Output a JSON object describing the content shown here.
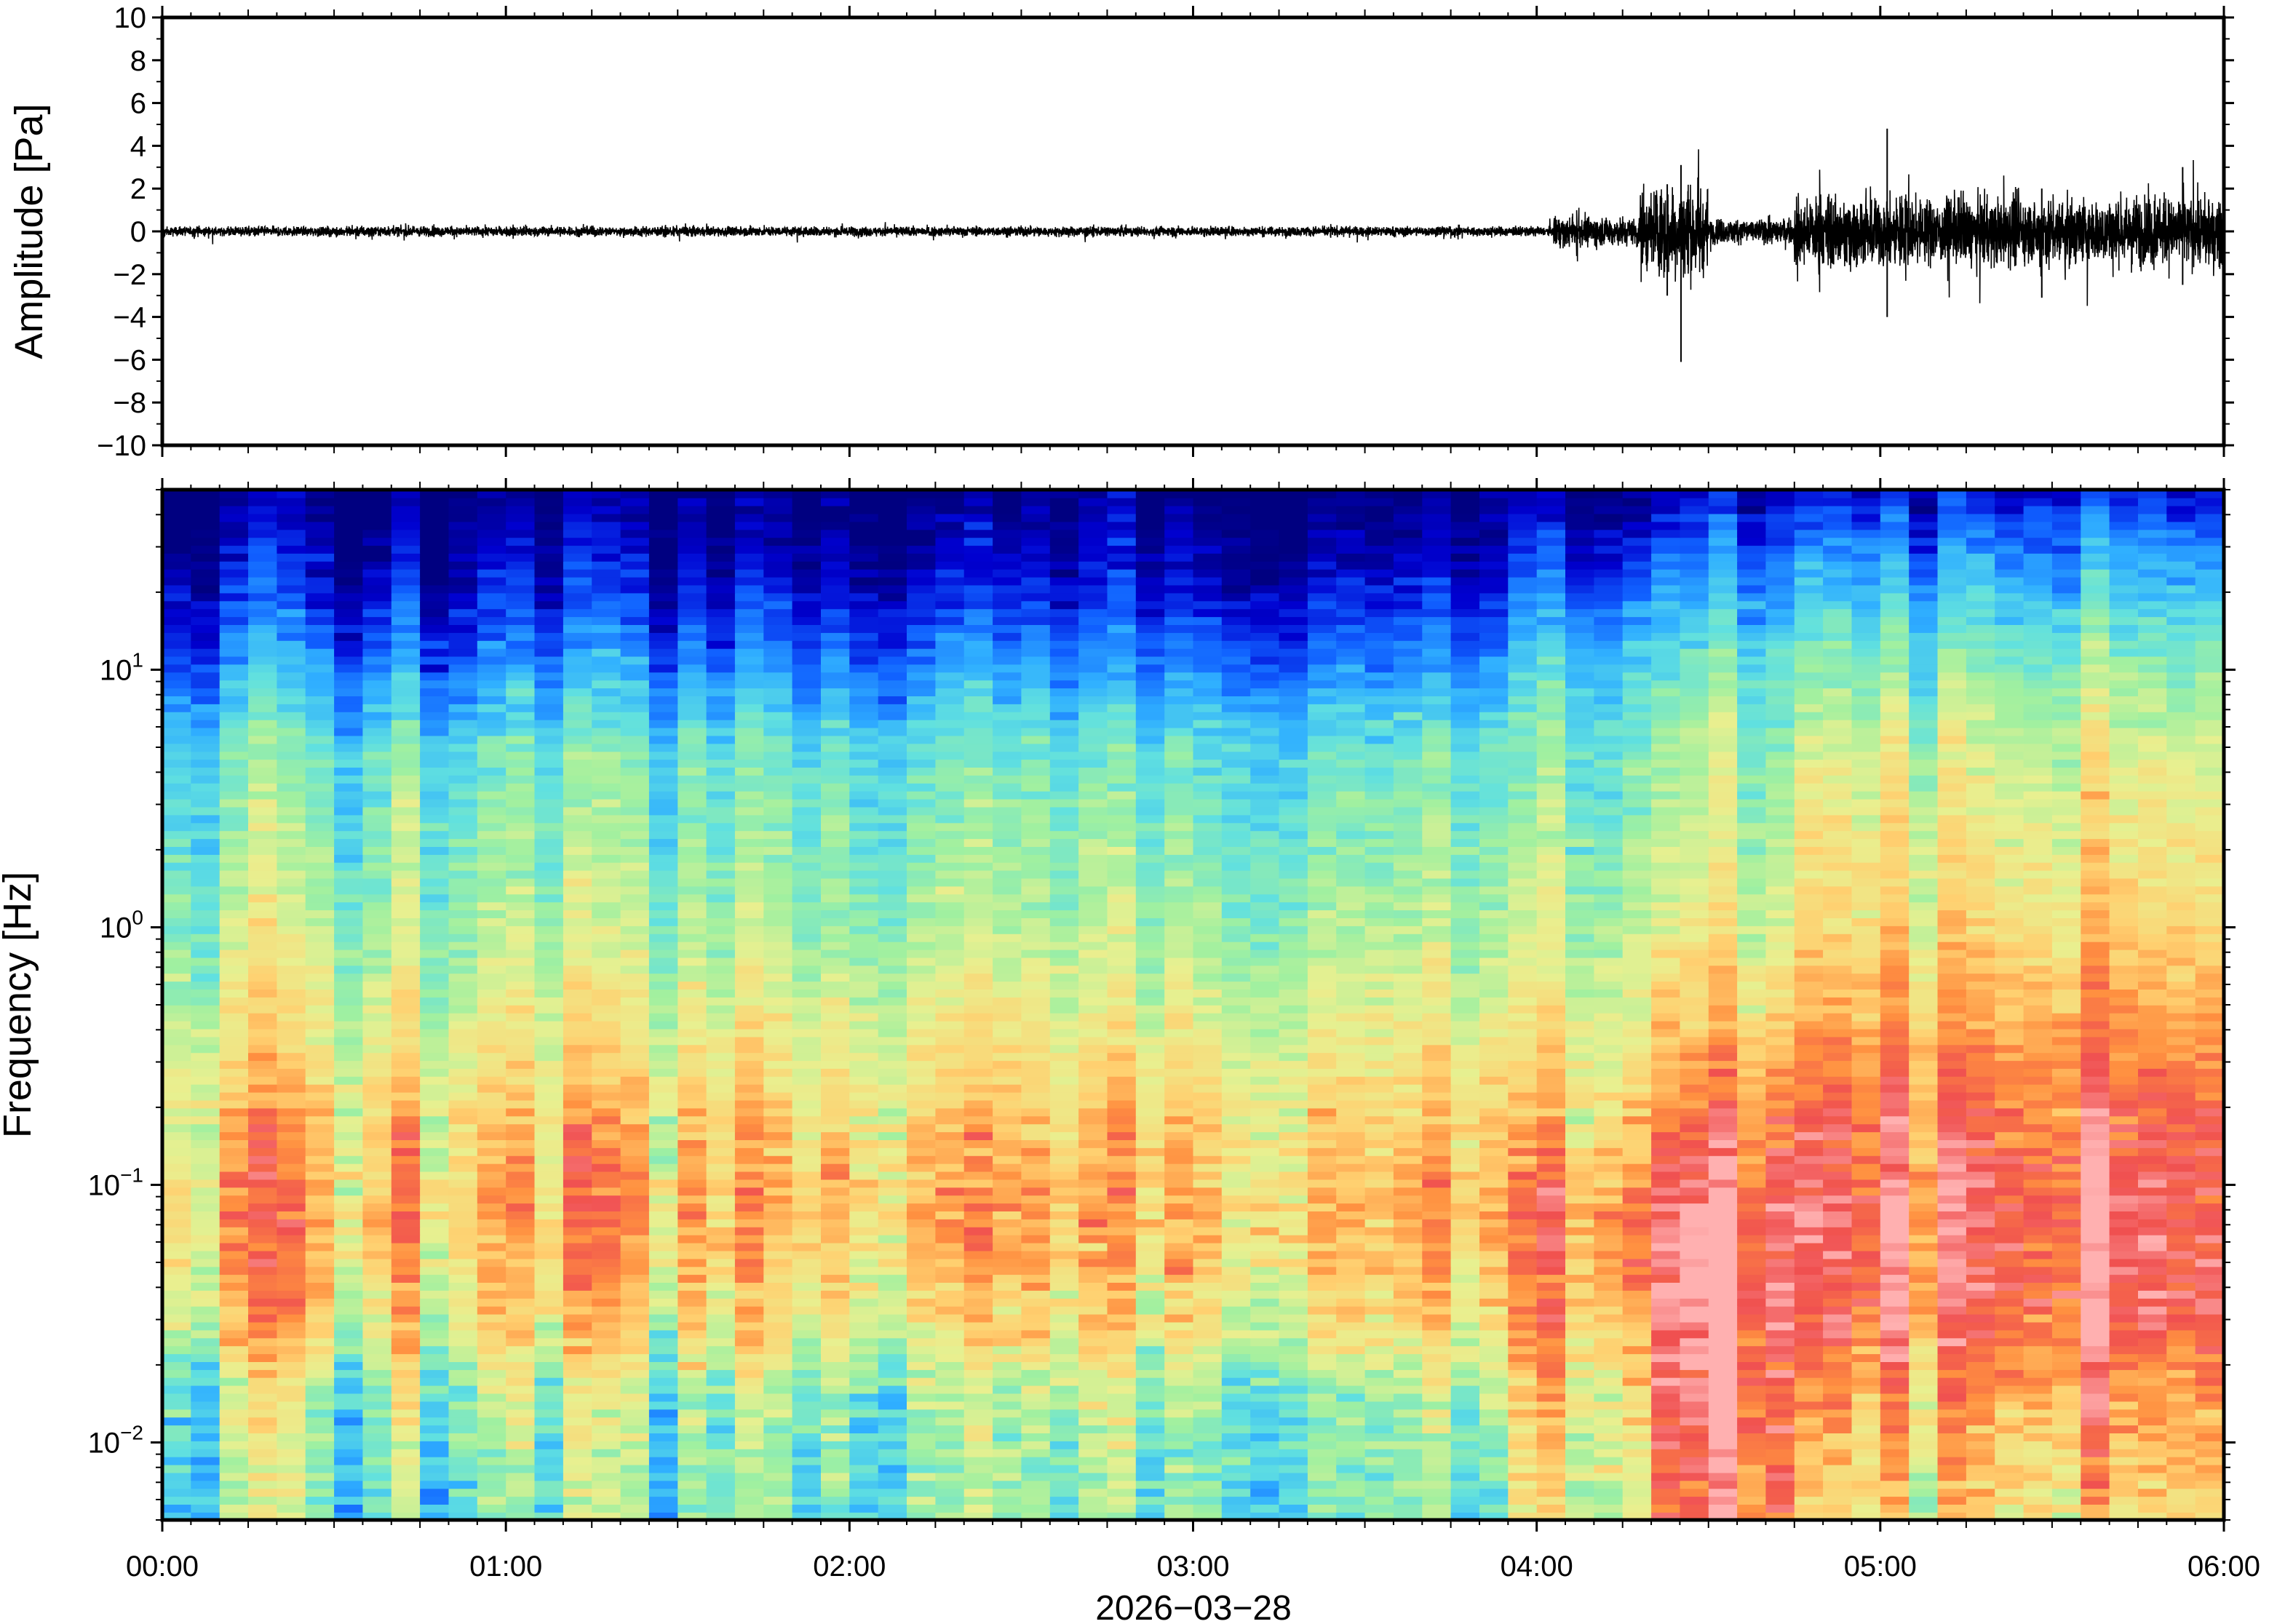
{
  "chart_data": [
    {
      "type": "line",
      "panel": "waveform",
      "ylabel": "Amplitude [Pa]",
      "ylim": [
        -10,
        10
      ],
      "y_ticks": [
        10,
        8,
        6,
        4,
        2,
        0,
        -2,
        -4,
        -6,
        -8,
        -10
      ],
      "y_tick_labels": [
        "10",
        "8",
        "6",
        "4",
        "2",
        "0",
        "−2",
        "−4",
        "−6",
        "−8",
        "−10"
      ],
      "x_range_hours": [
        0,
        6
      ],
      "series": [
        {
          "color": "#000000",
          "segments": [
            {
              "t": [
                0.0,
                4.05
              ],
              "amp": 0.2
            },
            {
              "t": [
                4.05,
                4.3
              ],
              "amp": 0.6
            },
            {
              "t": [
                4.3,
                4.5
              ],
              "amp": 1.8
            },
            {
              "t": [
                4.5,
                4.75
              ],
              "amp": 0.5
            },
            {
              "t": [
                4.75,
                6.0
              ],
              "amp": 1.4
            }
          ],
          "spikes": [
            {
              "t": 4.42,
              "min": -6.1,
              "max": 3.1
            },
            {
              "t": 4.38,
              "min": -3.0,
              "max": 2.2
            },
            {
              "t": 5.02,
              "min": -4.0,
              "max": 4.8
            },
            {
              "t": 5.47,
              "min": -3.1,
              "max": 2.0
            },
            {
              "t": 5.88,
              "min": -2.5,
              "max": 3.0
            }
          ]
        }
      ],
      "grid": false
    },
    {
      "type": "heatmap",
      "panel": "spectrogram",
      "ylabel": "Frequency [Hz]",
      "yscale": "log",
      "ylim": [
        0.005,
        50
      ],
      "y_ticks": [
        0.01,
        0.1,
        1,
        10
      ],
      "y_tick_labels": [
        {
          "base": "10",
          "exp": "−2"
        },
        {
          "base": "10",
          "exp": "−1"
        },
        {
          "base": "10",
          "exp": "0"
        },
        {
          "base": "10",
          "exp": "1"
        }
      ],
      "xlabel": "2026−03−28",
      "x_range_hours": [
        0,
        6
      ],
      "x_ticks": [
        0,
        1,
        2,
        3,
        4,
        5,
        6
      ],
      "x_tick_labels": [
        "00:00",
        "01:00",
        "02:00",
        "03:00",
        "04:00",
        "05:00",
        "06:00"
      ],
      "colormap": [
        "#000080",
        "#0000d0",
        "#1060ff",
        "#30b0ff",
        "#60e0e0",
        "#a0f0a0",
        "#e8f090",
        "#ffd070",
        "#ff9040",
        "#f05050",
        "#ffb0b0"
      ],
      "value_range": [
        0,
        1
      ],
      "regimes": [
        {
          "t": [
            0.0,
            3.95
          ],
          "profile": [
            [
              0.005,
              0.45
            ],
            [
              0.015,
              0.5
            ],
            [
              0.03,
              0.66
            ],
            [
              0.08,
              0.75
            ],
            [
              0.2,
              0.68
            ],
            [
              1.0,
              0.52
            ],
            [
              5.0,
              0.42
            ],
            [
              12.0,
              0.22
            ],
            [
              25.0,
              0.08
            ],
            [
              50.0,
              0.0
            ]
          ]
        },
        {
          "t": [
            3.95,
            4.3
          ],
          "profile": [
            [
              0.005,
              0.6
            ],
            [
              0.015,
              0.68
            ],
            [
              0.03,
              0.78
            ],
            [
              0.08,
              0.84
            ],
            [
              0.2,
              0.7
            ],
            [
              1.0,
              0.55
            ],
            [
              5.0,
              0.45
            ],
            [
              12.0,
              0.35
            ],
            [
              25.0,
              0.17
            ],
            [
              50.0,
              0.02
            ]
          ]
        },
        {
          "t": [
            4.3,
            4.75
          ],
          "profile": [
            [
              0.005,
              0.82
            ],
            [
              0.015,
              0.88
            ],
            [
              0.03,
              0.95
            ],
            [
              0.08,
              0.92
            ],
            [
              0.2,
              0.78
            ],
            [
              1.0,
              0.58
            ],
            [
              5.0,
              0.48
            ],
            [
              12.0,
              0.38
            ],
            [
              25.0,
              0.22
            ],
            [
              50.0,
              0.05
            ]
          ]
        },
        {
          "t": [
            4.75,
            6.0
          ],
          "profile": [
            [
              0.005,
              0.66
            ],
            [
              0.015,
              0.78
            ],
            [
              0.03,
              0.9
            ],
            [
              0.08,
              0.93
            ],
            [
              0.2,
              0.86
            ],
            [
              1.0,
              0.68
            ],
            [
              5.0,
              0.58
            ],
            [
              12.0,
              0.45
            ],
            [
              25.0,
              0.3
            ],
            [
              50.0,
              0.12
            ]
          ]
        }
      ],
      "grid": false
    }
  ]
}
